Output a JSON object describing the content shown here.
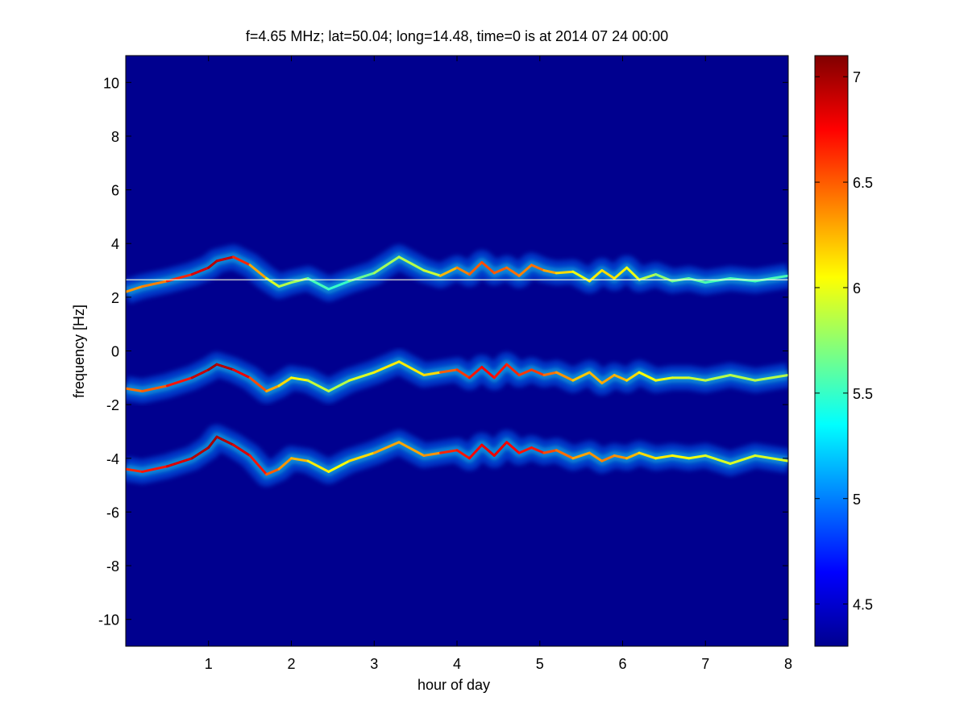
{
  "chart_data": {
    "type": "heatmap",
    "title": "f=4.65 MHz;  lat=50.04; long=14.48, time=0 is at 2014 07 24 00:00",
    "xlabel": "hour of day",
    "ylabel": "frequency [Hz]",
    "xlim": [
      0,
      8
    ],
    "ylim": [
      -11,
      11
    ],
    "x_ticks": [
      1,
      2,
      3,
      4,
      5,
      6,
      7,
      8
    ],
    "y_ticks": [
      -10,
      -8,
      -6,
      -4,
      -2,
      0,
      2,
      4,
      6,
      8,
      10
    ],
    "colorbar": {
      "range": [
        4.3,
        7.1
      ],
      "ticks": [
        4.5,
        5,
        5.5,
        6,
        6.5,
        7
      ],
      "colormap": "jet"
    },
    "background_color": "#00008f",
    "reference_line": {
      "frequency": 2.65,
      "x_range": [
        0,
        8
      ],
      "color": "#ffffe0"
    },
    "traces": [
      {
        "name": "upper",
        "x": [
          0.0,
          0.2,
          0.5,
          0.8,
          1.0,
          1.1,
          1.3,
          1.5,
          1.7,
          1.85,
          2.0,
          2.2,
          2.45,
          2.7,
          3.0,
          3.3,
          3.6,
          3.8,
          4.0,
          4.15,
          4.3,
          4.45,
          4.6,
          4.75,
          4.9,
          5.05,
          5.2,
          5.4,
          5.6,
          5.75,
          5.9,
          6.05,
          6.2,
          6.4,
          6.6,
          6.8,
          7.0,
          7.3,
          7.6,
          8.0
        ],
        "y": [
          2.2,
          2.4,
          2.6,
          2.85,
          3.1,
          3.35,
          3.5,
          3.2,
          2.7,
          2.4,
          2.55,
          2.7,
          2.3,
          2.6,
          2.9,
          3.5,
          3.0,
          2.8,
          3.1,
          2.85,
          3.3,
          2.9,
          3.1,
          2.8,
          3.2,
          3.0,
          2.9,
          2.95,
          2.6,
          3.0,
          2.7,
          3.1,
          2.65,
          2.85,
          2.6,
          2.7,
          2.55,
          2.7,
          2.6,
          2.8
        ],
        "peak": [
          6.4,
          6.3,
          6.5,
          6.8,
          6.9,
          7.0,
          6.8,
          6.5,
          6.1,
          5.8,
          5.9,
          5.7,
          5.4,
          5.6,
          5.7,
          5.9,
          5.8,
          6.0,
          6.5,
          6.3,
          6.7,
          6.4,
          6.6,
          6.3,
          6.5,
          6.4,
          6.2,
          6.1,
          5.9,
          6.3,
          6.0,
          6.2,
          5.8,
          5.9,
          5.6,
          5.7,
          5.5,
          5.6,
          5.5,
          5.6
        ]
      },
      {
        "name": "middle",
        "x": [
          0.0,
          0.2,
          0.5,
          0.8,
          1.0,
          1.1,
          1.3,
          1.5,
          1.7,
          1.85,
          2.0,
          2.2,
          2.45,
          2.7,
          3.0,
          3.3,
          3.6,
          3.8,
          4.0,
          4.15,
          4.3,
          4.45,
          4.6,
          4.75,
          4.9,
          5.05,
          5.2,
          5.4,
          5.6,
          5.75,
          5.9,
          6.05,
          6.2,
          6.4,
          6.6,
          6.8,
          7.0,
          7.3,
          7.6,
          8.0
        ],
        "y": [
          -1.4,
          -1.5,
          -1.3,
          -1.0,
          -0.7,
          -0.5,
          -0.7,
          -1.0,
          -1.5,
          -1.3,
          -1.0,
          -1.1,
          -1.5,
          -1.1,
          -0.8,
          -0.4,
          -0.9,
          -0.8,
          -0.7,
          -1.0,
          -0.6,
          -1.0,
          -0.5,
          -0.9,
          -0.7,
          -0.9,
          -0.8,
          -1.1,
          -0.8,
          -1.2,
          -0.9,
          -1.1,
          -0.8,
          -1.1,
          -1.0,
          -1.0,
          -1.1,
          -0.9,
          -1.1,
          -0.9
        ],
        "peak": [
          6.5,
          6.4,
          6.6,
          6.8,
          7.0,
          7.0,
          6.9,
          6.7,
          6.4,
          6.2,
          6.1,
          6.0,
          5.8,
          5.9,
          6.0,
          6.2,
          6.0,
          6.3,
          6.7,
          6.5,
          6.9,
          6.6,
          6.8,
          6.5,
          6.7,
          6.5,
          6.4,
          6.3,
          6.1,
          6.4,
          6.2,
          6.3,
          6.0,
          6.1,
          5.9,
          6.0,
          5.8,
          5.9,
          5.8,
          5.9
        ]
      },
      {
        "name": "lower",
        "x": [
          0.0,
          0.2,
          0.5,
          0.8,
          1.0,
          1.1,
          1.3,
          1.5,
          1.7,
          1.85,
          2.0,
          2.2,
          2.45,
          2.7,
          3.0,
          3.3,
          3.6,
          3.8,
          4.0,
          4.15,
          4.3,
          4.45,
          4.6,
          4.75,
          4.9,
          5.05,
          5.2,
          5.4,
          5.6,
          5.75,
          5.9,
          6.05,
          6.2,
          6.4,
          6.6,
          6.8,
          7.0,
          7.3,
          7.6,
          8.0
        ],
        "y": [
          -4.4,
          -4.5,
          -4.3,
          -4.0,
          -3.6,
          -3.2,
          -3.5,
          -3.9,
          -4.6,
          -4.4,
          -4.0,
          -4.1,
          -4.5,
          -4.1,
          -3.8,
          -3.4,
          -3.9,
          -3.8,
          -3.7,
          -4.0,
          -3.5,
          -3.9,
          -3.4,
          -3.8,
          -3.6,
          -3.8,
          -3.7,
          -4.0,
          -3.8,
          -4.1,
          -3.9,
          -4.0,
          -3.8,
          -4.0,
          -3.9,
          -4.0,
          -3.9,
          -4.2,
          -3.9,
          -4.1
        ],
        "peak": [
          6.7,
          6.6,
          6.8,
          6.9,
          7.0,
          7.0,
          6.9,
          6.8,
          6.6,
          6.4,
          6.3,
          6.2,
          6.0,
          6.1,
          6.2,
          6.4,
          6.2,
          6.5,
          6.8,
          6.6,
          6.9,
          6.7,
          6.9,
          6.6,
          6.8,
          6.6,
          6.5,
          6.4,
          6.2,
          6.5,
          6.3,
          6.4,
          6.1,
          6.2,
          6.0,
          6.1,
          5.9,
          6.0,
          5.9,
          6.0
        ]
      }
    ]
  }
}
